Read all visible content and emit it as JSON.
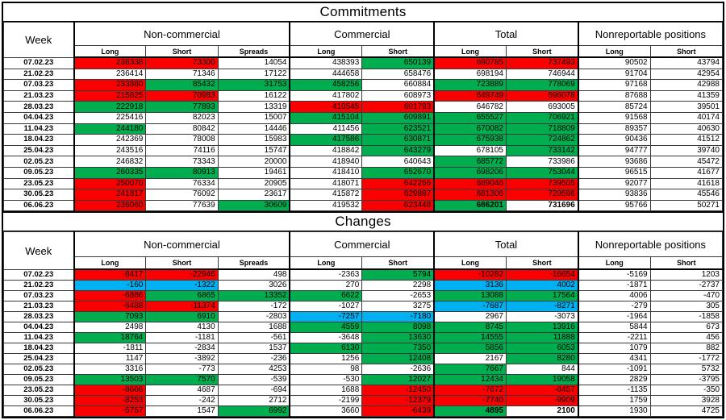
{
  "sections": {
    "commitments": {
      "title": "Commitments"
    },
    "changes": {
      "title": "Changes"
    }
  },
  "colors": {
    "red": "#FB0000",
    "green": "#00AE50",
    "blue": "#00B0F0",
    "grid": "#3a3a3a"
  },
  "header": {
    "week_label": "Week",
    "groups": [
      {
        "label": "Non-commercial",
        "columns": [
          "Long",
          "Short",
          "Spreads"
        ]
      },
      {
        "label": "Commercial",
        "columns": [
          "Long",
          "Short"
        ]
      },
      {
        "label": "Total",
        "columns": [
          "Long",
          "Short"
        ]
      },
      {
        "label": "Nonreportable positions",
        "columns": [
          "Long",
          "Short"
        ]
      }
    ]
  },
  "commitments_rows": [
    {
      "week": "07.02.23",
      "values": [
        238338,
        73300,
        14054,
        438393,
        650139,
        690785,
        737493,
        90502,
        43794
      ],
      "fills": [
        "red",
        "red",
        "",
        "",
        "green",
        "red",
        "red",
        "",
        ""
      ],
      "bold": []
    },
    {
      "week": "21.02.23",
      "values": [
        236414,
        71346,
        17122,
        444658,
        658476,
        698194,
        746944,
        91704,
        42954
      ],
      "fills": [
        "",
        "",
        "",
        "",
        "",
        "",
        "",
        "",
        ""
      ],
      "bold": []
    },
    {
      "week": "07.03.23",
      "values": [
        233880,
        85432,
        31753,
        458256,
        660884,
        723889,
        778069,
        97168,
        42988
      ],
      "fills": [
        "red",
        "green",
        "green",
        "green",
        "",
        "green",
        "green",
        "",
        ""
      ],
      "bold": []
    },
    {
      "week": "21.03.23",
      "values": [
        215825,
        70983,
        16122,
        417802,
        608973,
        649749,
        696078,
        87688,
        41359
      ],
      "fills": [
        "red",
        "red",
        "",
        "",
        "",
        "red",
        "red",
        "",
        ""
      ],
      "bold": []
    },
    {
      "week": "28.03.23",
      "values": [
        222918,
        77893,
        13319,
        410545,
        601793,
        646782,
        693005,
        85724,
        39501
      ],
      "fills": [
        "green",
        "green",
        "",
        "red",
        "red",
        "",
        "",
        "",
        ""
      ],
      "bold": []
    },
    {
      "week": "04.04.23",
      "values": [
        225416,
        82023,
        15007,
        415104,
        609891,
        655527,
        706921,
        91568,
        40174
      ],
      "fills": [
        "",
        "",
        "",
        "green",
        "green",
        "green",
        "green",
        "",
        ""
      ],
      "bold": []
    },
    {
      "week": "11.04.23",
      "values": [
        244180,
        80842,
        14446,
        411456,
        623521,
        670082,
        718809,
        89357,
        40630
      ],
      "fills": [
        "green",
        "",
        "",
        "",
        "green",
        "green",
        "green",
        "",
        ""
      ],
      "bold": []
    },
    {
      "week": "18.04.23",
      "values": [
        242369,
        78008,
        15983,
        417586,
        630871,
        675938,
        724862,
        90436,
        41512
      ],
      "fills": [
        "",
        "",
        "",
        "green",
        "green",
        "green",
        "green",
        "",
        ""
      ],
      "bold": []
    },
    {
      "week": "25.04.23",
      "values": [
        243516,
        74116,
        15747,
        418842,
        643279,
        678105,
        733142,
        94777,
        39740
      ],
      "fills": [
        "",
        "",
        "",
        "",
        "green",
        "",
        "green",
        "",
        ""
      ],
      "bold": []
    },
    {
      "week": "02.05.23",
      "values": [
        246832,
        73343,
        20000,
        418940,
        640643,
        685772,
        733986,
        93686,
        45472
      ],
      "fills": [
        "",
        "",
        "",
        "",
        "",
        "green",
        "",
        "",
        ""
      ],
      "bold": []
    },
    {
      "week": "09.05.23",
      "values": [
        260335,
        80913,
        19461,
        418410,
        652670,
        698206,
        753044,
        96515,
        41677
      ],
      "fills": [
        "green",
        "green",
        "",
        "",
        "green",
        "green",
        "green",
        "",
        ""
      ],
      "bold": []
    },
    {
      "week": "23.05.23",
      "values": [
        250070,
        76334,
        20905,
        418071,
        642266,
        689046,
        739505,
        92077,
        41618
      ],
      "fills": [
        "red",
        "",
        "",
        "",
        "red",
        "red",
        "red",
        "",
        ""
      ],
      "bold": []
    },
    {
      "week": "30.05.23",
      "values": [
        241817,
        76092,
        23617,
        415872,
        629887,
        681306,
        729596,
        93836,
        45546
      ],
      "fills": [
        "red",
        "",
        "",
        "",
        "red",
        "red",
        "red",
        "",
        ""
      ],
      "bold": []
    },
    {
      "week": "06.06.23",
      "values": [
        236060,
        77639,
        30609,
        419532,
        623448,
        686201,
        731696,
        95766,
        50271
      ],
      "fills": [
        "red",
        "",
        "green",
        "",
        "red",
        "green",
        "",
        "",
        ""
      ],
      "bold": [
        5,
        6
      ]
    }
  ],
  "changes_rows": [
    {
      "week": "07.02.23",
      "values": [
        -8417,
        -22946,
        498,
        -2363,
        5794,
        -10282,
        -16654,
        -5169,
        1203
      ],
      "fills": [
        "red",
        "red",
        "",
        "",
        "green",
        "red",
        "red",
        "",
        ""
      ],
      "bold": []
    },
    {
      "week": "21.02.23",
      "values": [
        -160,
        -1322,
        3026,
        270,
        2298,
        3136,
        4002,
        -1871,
        -2737
      ],
      "fills": [
        "blue",
        "blue",
        "",
        "",
        "",
        "blue",
        "blue",
        "",
        ""
      ],
      "bold": []
    },
    {
      "week": "07.03.23",
      "values": [
        -6886,
        6865,
        13352,
        6622,
        -2653,
        13088,
        17564,
        4006,
        -470
      ],
      "fills": [
        "red",
        "green",
        "green",
        "green",
        "",
        "green",
        "green",
        "",
        ""
      ],
      "bold": []
    },
    {
      "week": "21.03.23",
      "values": [
        -6488,
        -11374,
        -172,
        -1027,
        3275,
        -7687,
        -8271,
        -279,
        305
      ],
      "fills": [
        "red",
        "red",
        "",
        "",
        "",
        "blue",
        "blue",
        "",
        ""
      ],
      "bold": []
    },
    {
      "week": "28.03.23",
      "values": [
        7093,
        6910,
        -2803,
        -7257,
        -7180,
        2967,
        -3073,
        -1964,
        -1858
      ],
      "fills": [
        "green",
        "green",
        "",
        "blue",
        "blue",
        "",
        "",
        "",
        ""
      ],
      "bold": []
    },
    {
      "week": "04.04.23",
      "values": [
        2498,
        4130,
        1688,
        4559,
        8098,
        8745,
        13916,
        5844,
        673
      ],
      "fills": [
        "",
        "",
        "",
        "green",
        "green",
        "green",
        "green",
        "",
        ""
      ],
      "bold": []
    },
    {
      "week": "11.04.23",
      "values": [
        18764,
        -1181,
        -561,
        -3648,
        13630,
        14555,
        11888,
        -2211,
        456
      ],
      "fills": [
        "green",
        "",
        "",
        "",
        "green",
        "green",
        "green",
        "",
        ""
      ],
      "bold": []
    },
    {
      "week": "18.04.23",
      "values": [
        -1811,
        -2834,
        1537,
        6130,
        7350,
        5856,
        6053,
        1079,
        882
      ],
      "fills": [
        "",
        "",
        "",
        "green",
        "green",
        "green",
        "green",
        "",
        ""
      ],
      "bold": []
    },
    {
      "week": "25.04.23",
      "values": [
        1147,
        -3892,
        -236,
        1256,
        12408,
        2167,
        8280,
        4341,
        -1772
      ],
      "fills": [
        "",
        "",
        "",
        "",
        "green",
        "",
        "green",
        "",
        ""
      ],
      "bold": []
    },
    {
      "week": "02.05.23",
      "values": [
        3316,
        -773,
        4253,
        98,
        -2636,
        7667,
        844,
        -1091,
        5732
      ],
      "fills": [
        "",
        "",
        "",
        "",
        "",
        "green",
        "",
        "",
        ""
      ],
      "bold": []
    },
    {
      "week": "09.05.23",
      "values": [
        13503,
        7570,
        -539,
        -530,
        12027,
        12434,
        19058,
        2829,
        -3795
      ],
      "fills": [
        "green",
        "green",
        "",
        "",
        "green",
        "green",
        "green",
        "",
        ""
      ],
      "bold": []
    },
    {
      "week": "23.05.23",
      "values": [
        -8666,
        4687,
        -694,
        1688,
        -12450,
        -7672,
        -8457,
        -1135,
        -350
      ],
      "fills": [
        "red",
        "",
        "",
        "",
        "red",
        "red",
        "red",
        "",
        ""
      ],
      "bold": []
    },
    {
      "week": "30.05.23",
      "values": [
        -8253,
        -242,
        2712,
        -2199,
        -12379,
        -7740,
        -9909,
        1759,
        3928
      ],
      "fills": [
        "red",
        "",
        "",
        "",
        "red",
        "red",
        "red",
        "",
        ""
      ],
      "bold": []
    },
    {
      "week": "06.06.23",
      "values": [
        -5757,
        1547,
        6992,
        3660,
        -6439,
        4895,
        2100,
        1930,
        4725
      ],
      "fills": [
        "red",
        "",
        "green",
        "",
        "red",
        "green",
        "",
        "",
        ""
      ],
      "bold": [
        5,
        6
      ]
    }
  ]
}
